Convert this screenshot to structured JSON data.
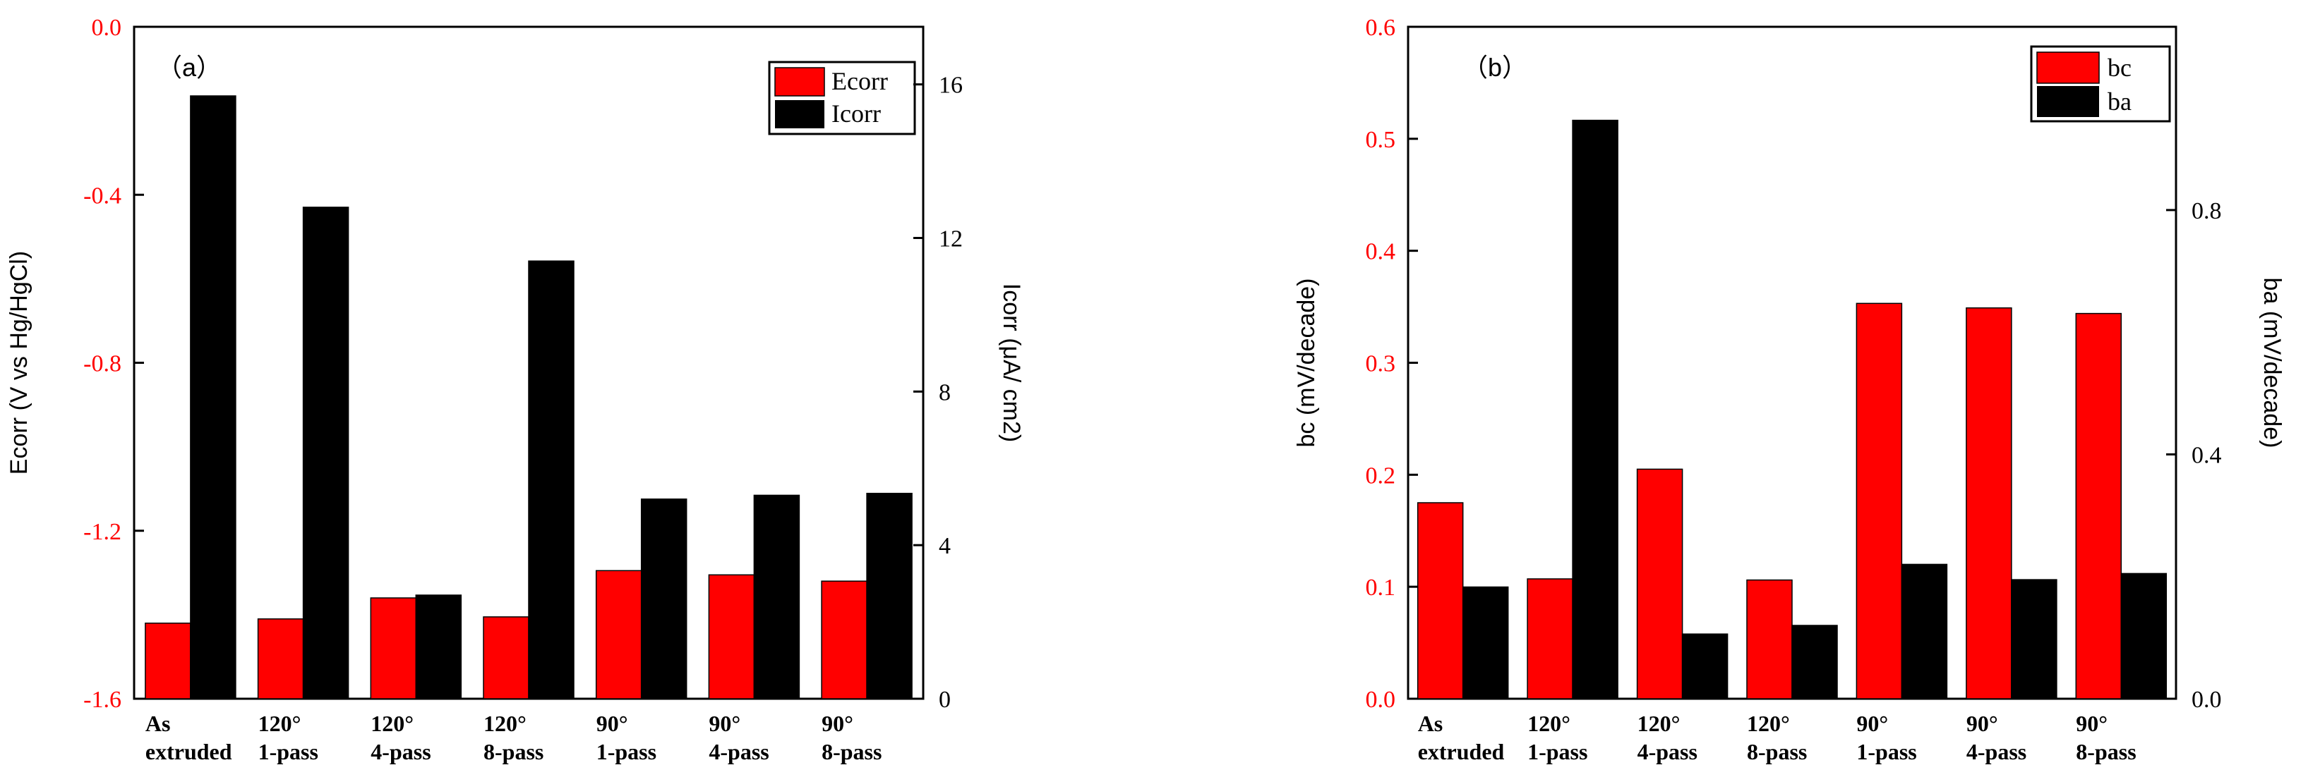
{
  "chart_data": [
    {
      "type": "bar",
      "panel_label": "（a）",
      "categories": [
        [
          "As",
          "extruded"
        ],
        [
          "120°",
          "1-pass"
        ],
        [
          "120°",
          "4-pass"
        ],
        [
          "120°",
          "8-pass"
        ],
        [
          "90°",
          "1-pass"
        ],
        [
          "90°",
          "4-pass"
        ],
        [
          "90°",
          "8-pass"
        ]
      ],
      "series": [
        {
          "name": "Ecorr",
          "axis": "left",
          "color": "#ff0000",
          "values": [
            -1.42,
            -1.41,
            -1.36,
            -1.405,
            -1.295,
            -1.305,
            -1.32
          ]
        },
        {
          "name": "Icorr",
          "axis": "right",
          "color": "#000000",
          "values": [
            15.7,
            12.8,
            2.7,
            11.4,
            5.2,
            5.3,
            5.35
          ]
        }
      ],
      "y_left": {
        "label": "Ecorr (V vs Hg/HgCl)",
        "ylim": [
          -1.6,
          0.0
        ],
        "ticks": [
          "-1.6",
          "-1.2",
          "-0.8",
          "-0.4",
          "0.0"
        ],
        "tick_values": [
          -1.6,
          -1.2,
          -0.8,
          -0.4,
          0.0
        ],
        "color": "#ff0000"
      },
      "y_right": {
        "label": "Icorr (μA/ cm2)",
        "ylim": [
          0,
          17.5
        ],
        "ticks": [
          "0",
          "4",
          "8",
          "12",
          "16"
        ],
        "tick_values": [
          0,
          4,
          8,
          12,
          16
        ],
        "color": "#000000"
      },
      "legend": {
        "position": "top-right"
      }
    },
    {
      "type": "bar",
      "panel_label": "（b）",
      "categories": [
        [
          "As",
          "extruded"
        ],
        [
          "120°",
          "1-pass"
        ],
        [
          "120°",
          "4-pass"
        ],
        [
          "120°",
          "8-pass"
        ],
        [
          "90°",
          "1-pass"
        ],
        [
          "90°",
          "4-pass"
        ],
        [
          "90°",
          "8-pass"
        ]
      ],
      "series": [
        {
          "name": "bc",
          "axis": "left",
          "color": "#ff0000",
          "values": [
            0.175,
            0.107,
            0.205,
            0.106,
            0.353,
            0.349,
            0.344
          ]
        },
        {
          "name": "ba",
          "axis": "right",
          "color": "#000000",
          "values": [
            0.183,
            0.947,
            0.106,
            0.12,
            0.22,
            0.195,
            0.205
          ]
        }
      ],
      "y_left": {
        "label": "bc (mV/decade)",
        "ylim": [
          0,
          0.6
        ],
        "ticks": [
          "0.0",
          "0.1",
          "0.2",
          "0.3",
          "0.4",
          "0.5",
          "0.6"
        ],
        "tick_values": [
          0,
          0.1,
          0.2,
          0.3,
          0.4,
          0.5,
          0.6
        ],
        "color": "#ff0000"
      },
      "y_right": {
        "label": "ba (mV/decade)",
        "ylim": [
          0,
          1.1
        ],
        "ticks": [
          "0.0",
          "0.4",
          "0.8"
        ],
        "tick_values": [
          0,
          0.4,
          0.8
        ],
        "color": "#000000"
      },
      "legend": {
        "position": "top-right"
      }
    }
  ]
}
